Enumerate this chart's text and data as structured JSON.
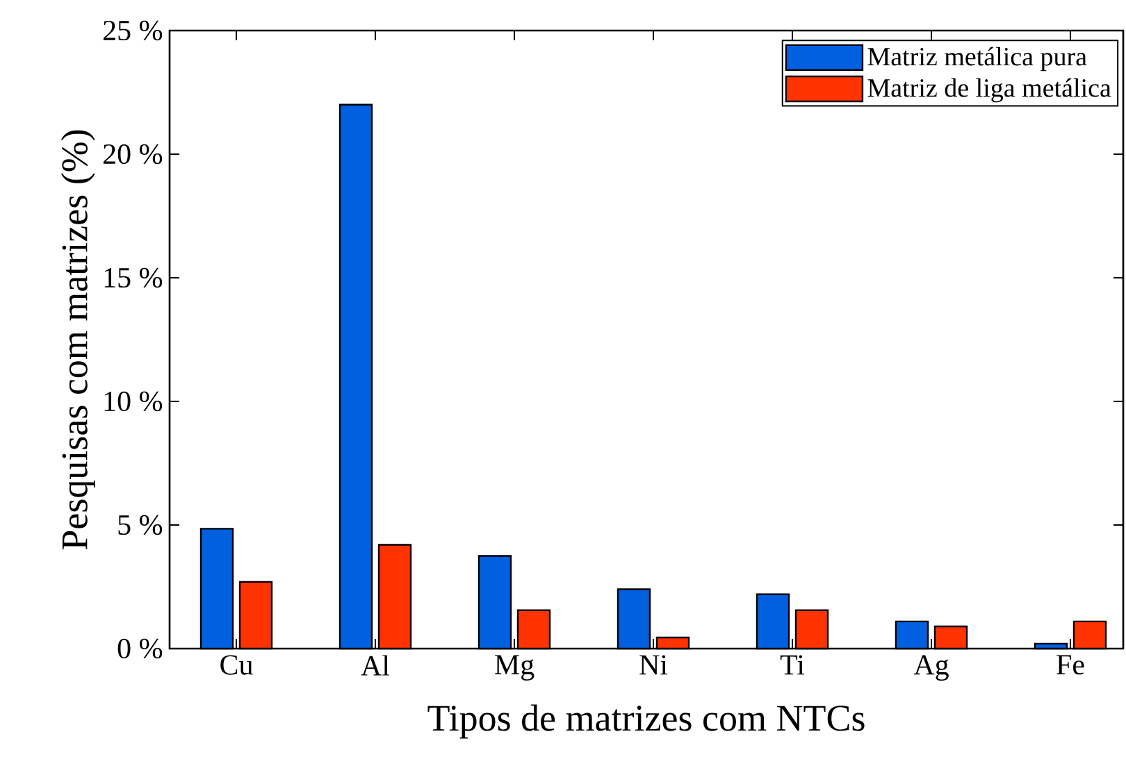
{
  "chart_data": {
    "type": "bar",
    "xlabel": "Tipos de matrizes com NTCs",
    "ylabel": "Pesquisas com matrizes (%)",
    "categories": [
      "Cu",
      "Al",
      "Mg",
      "Ni",
      "Ti",
      "Ag",
      "Fe"
    ],
    "series": [
      {
        "name": "Matriz metálica pura",
        "color": "#0060e0",
        "values": [
          4.85,
          22,
          3.75,
          2.4,
          2.2,
          1.1,
          0.2
        ]
      },
      {
        "name": "Matriz de liga metálica",
        "color": "#ff3300",
        "values": [
          2.7,
          4.2,
          1.55,
          0.45,
          1.55,
          0.9,
          1.1
        ]
      }
    ],
    "ylim": [
      0,
      25
    ],
    "yticks": [
      {
        "value": 0,
        "label": "0 %"
      },
      {
        "value": 5,
        "label": "5 %"
      },
      {
        "value": 10,
        "label": "10 %"
      },
      {
        "value": 15,
        "label": "15 %"
      },
      {
        "value": 20,
        "label": "20 %"
      },
      {
        "value": 25,
        "label": "25 %"
      }
    ],
    "legend": "top right",
    "grid": false
  }
}
